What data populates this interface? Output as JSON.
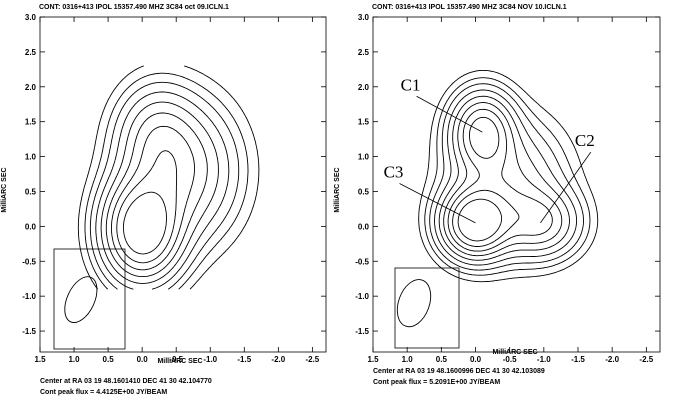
{
  "chart_data": [
    {
      "type": "contour",
      "title": "CONT: 0316+413  IPOL  15357.490 MHZ  3C84 oct 09.ICLN.1",
      "xlabel": "MilliARC SEC",
      "ylabel": "MilliARC SEC",
      "xlim": [
        1.5,
        -2.7
      ],
      "ylim": [
        -1.8,
        3.0
      ],
      "xticks": [
        1.5,
        1.0,
        0.5,
        0.0,
        -0.5,
        -1.0,
        -1.5,
        -2.0,
        -2.5
      ],
      "yticks": [
        3.0,
        2.5,
        2.0,
        1.5,
        1.0,
        0.5,
        0.0,
        -0.5,
        -1.0,
        -1.5
      ],
      "xtick_labels": [
        "1.5",
        "1.0",
        "0.5",
        "0.0",
        "-0.5",
        "-1.0",
        "-1.5",
        "-2.0",
        "-2.5"
      ],
      "ytick_labels": [
        "3.0",
        "2.5",
        "2.0",
        "1.5",
        "1.0",
        "0.5",
        "0.0",
        "-0.5",
        "-1.0",
        "-1.5"
      ],
      "footer_center": "Center at RA 03 19 48.1601410  DEC 41 30 42.104770",
      "footer_peak": "Cont peak flux =  4.4125E+00 JY/BEAM",
      "peak_flux_jy_per_beam": 4.4125,
      "components": [
        {
          "label": "",
          "x": 0.0,
          "y": -0.05
        }
      ],
      "beam": {
        "x": 0.9,
        "y": -1.05,
        "major": 0.7,
        "minor": 0.4,
        "pa_deg": 25
      },
      "annotations": []
    },
    {
      "type": "contour",
      "title": "CONT: 0316+413  IPOL  15357.490 MHZ  3C84 NOV 10.ICLN.1",
      "xlabel": "MilliARC SEC",
      "ylabel": "MilliARC SEC",
      "xlim": [
        1.5,
        -2.7
      ],
      "ylim": [
        -1.8,
        3.0
      ],
      "xticks": [
        1.5,
        1.0,
        0.5,
        0.0,
        -0.5,
        -1.0,
        -1.5,
        -2.0,
        -2.5
      ],
      "yticks": [
        3.0,
        2.5,
        2.0,
        1.5,
        1.0,
        0.5,
        0.0,
        -0.5,
        -1.0,
        -1.5
      ],
      "xtick_labels": [
        "1.5",
        "1.0",
        "0.5",
        "0.0",
        "-0.5",
        "-1.0",
        "-1.5",
        "-2.0",
        "-2.5"
      ],
      "ytick_labels": [
        "3.0",
        "2.5",
        "2.0",
        "1.5",
        "1.0",
        "0.5",
        "0.0",
        "-0.5",
        "-1.0",
        "-1.5"
      ],
      "footer_center": "Center at RA 03 19 48.1600996  DEC 41 30 42.103089",
      "footer_peak": "Cont peak flux =  5.2091E+00 JY/BEAM",
      "peak_flux_jy_per_beam": 5.2091,
      "components": [
        {
          "label": "C1",
          "x": -0.1,
          "y": 1.35
        },
        {
          "label": "C2",
          "x": -0.95,
          "y": 0.05
        },
        {
          "label": "C3",
          "x": 0.0,
          "y": 0.05
        }
      ],
      "beam": {
        "x": 0.9,
        "y": -1.1,
        "major": 0.7,
        "minor": 0.45,
        "pa_deg": 20
      },
      "annotations": [
        {
          "text": "C1",
          "x": 0.95,
          "y": 1.95,
          "target_x": -0.1,
          "target_y": 1.35
        },
        {
          "text": "C2",
          "x": -1.6,
          "y": 1.15,
          "target_x": -0.95,
          "target_y": 0.05
        },
        {
          "text": "C3",
          "x": 1.2,
          "y": 0.7,
          "target_x": 0.0,
          "target_y": 0.05
        }
      ]
    }
  ]
}
